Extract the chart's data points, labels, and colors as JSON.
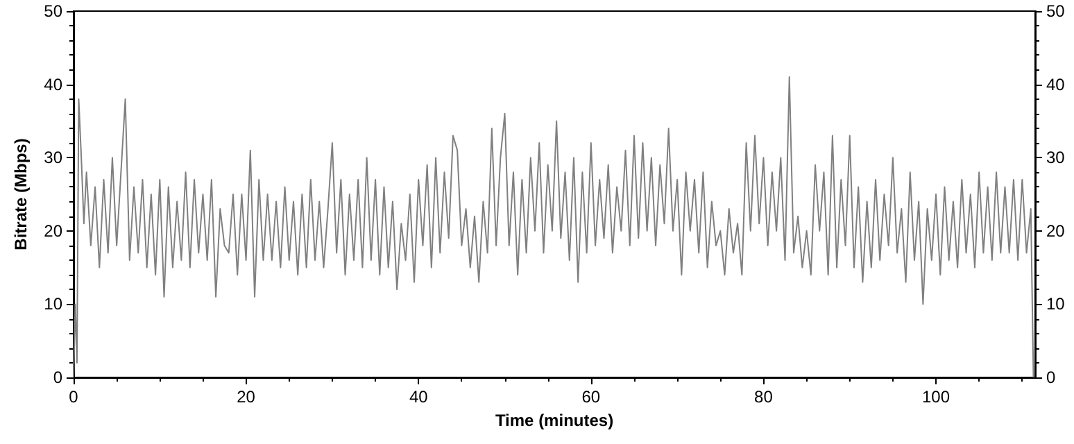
{
  "chart_data": {
    "type": "line",
    "xlabel": "Time (minutes)",
    "ylabel": "Bitrate (Mbps)",
    "xlim": [
      0,
      111.5
    ],
    "xticks": [
      0,
      20,
      40,
      60,
      80,
      100
    ],
    "ylim": [
      0,
      50
    ],
    "yticks": [
      0,
      10,
      20,
      30,
      40,
      50
    ],
    "y2lim": [
      0,
      50
    ],
    "y2ticks": [
      0,
      10,
      20,
      30,
      40,
      50
    ],
    "grid": false,
    "marker": "none",
    "line_style": "solid",
    "series": [
      {
        "color": "#808080",
        "x": [
          0,
          0.2,
          0.4,
          0.6,
          0.9,
          1.2,
          1.5,
          2,
          2.5,
          3,
          3.5,
          4,
          4.5,
          5,
          5.5,
          6,
          6.5,
          7,
          7.5,
          8,
          8.5,
          9,
          9.5,
          10,
          10.5,
          11,
          11.5,
          12,
          12.5,
          13,
          13.5,
          14,
          14.5,
          15,
          15.5,
          16,
          16.5,
          17,
          17.5,
          18,
          18.5,
          19,
          19.5,
          20,
          20.5,
          21,
          21.5,
          22,
          22.5,
          23,
          23.5,
          24,
          24.5,
          25,
          25.5,
          26,
          26.5,
          27,
          27.5,
          28,
          28.5,
          29,
          29.5,
          30,
          30.5,
          31,
          31.5,
          32,
          32.5,
          33,
          33.5,
          34,
          34.5,
          35,
          35.5,
          36,
          36.5,
          37,
          37.5,
          38,
          38.5,
          39,
          39.5,
          40,
          40.5,
          41,
          41.5,
          42,
          42.5,
          43,
          43.5,
          44,
          44.5,
          45,
          45.5,
          46,
          46.5,
          47,
          47.5,
          48,
          48.5,
          49,
          49.5,
          50,
          50.5,
          51,
          51.5,
          52,
          52.5,
          53,
          53.5,
          54,
          54.5,
          55,
          55.5,
          56,
          56.5,
          57,
          57.5,
          58,
          58.5,
          59,
          59.5,
          60,
          60.5,
          61,
          61.5,
          62,
          62.5,
          63,
          63.5,
          64,
          64.5,
          65,
          65.5,
          66,
          66.5,
          67,
          67.5,
          68,
          68.5,
          69,
          69.5,
          70,
          70.5,
          71,
          71.5,
          72,
          72.5,
          73,
          73.5,
          74,
          74.5,
          75,
          75.5,
          76,
          76.5,
          77,
          77.5,
          78,
          78.5,
          79,
          79.5,
          80,
          80.5,
          81,
          81.5,
          82,
          82.5,
          83,
          83.5,
          84,
          84.5,
          85,
          85.5,
          86,
          86.5,
          87,
          87.5,
          88,
          88.5,
          89,
          89.5,
          90,
          90.5,
          91,
          91.5,
          92,
          92.5,
          93,
          93.5,
          94,
          94.5,
          95,
          95.5,
          96,
          96.5,
          97,
          97.5,
          98,
          98.5,
          99,
          99.5,
          100,
          100.5,
          101,
          101.5,
          102,
          102.5,
          103,
          103.5,
          104,
          104.5,
          105,
          105.5,
          106,
          106.5,
          107,
          107.5,
          108,
          108.5,
          109,
          109.5,
          110,
          110.5,
          111,
          111.3
        ],
        "values": [
          0,
          10,
          2,
          38,
          30,
          21,
          28,
          18,
          26,
          15,
          27,
          17,
          30,
          18,
          28,
          38,
          16,
          26,
          17,
          27,
          15,
          25,
          14,
          27,
          11,
          26,
          15,
          24,
          16,
          28,
          15,
          27,
          17,
          25,
          16,
          27,
          11,
          23,
          18,
          17,
          25,
          14,
          25,
          16,
          31,
          11,
          27,
          16,
          25,
          16,
          24,
          15,
          26,
          16,
          24,
          14,
          25,
          15,
          27,
          16,
          24,
          15,
          23,
          32,
          17,
          27,
          14,
          25,
          16,
          27,
          15,
          30,
          16,
          27,
          14,
          26,
          15,
          24,
          12,
          21,
          16,
          25,
          13,
          27,
          18,
          29,
          15,
          30,
          17,
          28,
          19,
          33,
          31,
          18,
          23,
          15,
          22,
          13,
          24,
          17,
          34,
          18,
          30,
          36,
          18,
          28,
          14,
          27,
          17,
          30,
          20,
          32,
          17,
          29,
          20,
          35,
          19,
          28,
          16,
          30,
          13,
          28,
          17,
          32,
          18,
          27,
          19,
          29,
          17,
          26,
          20,
          31,
          18,
          33,
          19,
          32,
          20,
          30,
          18,
          29,
          21,
          34,
          20,
          27,
          14,
          28,
          20,
          27,
          17,
          28,
          15,
          24,
          18,
          20,
          14,
          23,
          17,
          21,
          14,
          32,
          20,
          33,
          21,
          30,
          18,
          28,
          20,
          30,
          16,
          41,
          17,
          22,
          15,
          20,
          14,
          29,
          20,
          28,
          14,
          33,
          15,
          27,
          18,
          33,
          15,
          26,
          13,
          24,
          15,
          27,
          16,
          25,
          18,
          30,
          17,
          23,
          13,
          28,
          16,
          24,
          10,
          23,
          16,
          25,
          14,
          26,
          16,
          24,
          15,
          27,
          17,
          25,
          15,
          28,
          17,
          26,
          16,
          28,
          17,
          26,
          17,
          27,
          16,
          27,
          17,
          23,
          0
        ]
      }
    ]
  }
}
